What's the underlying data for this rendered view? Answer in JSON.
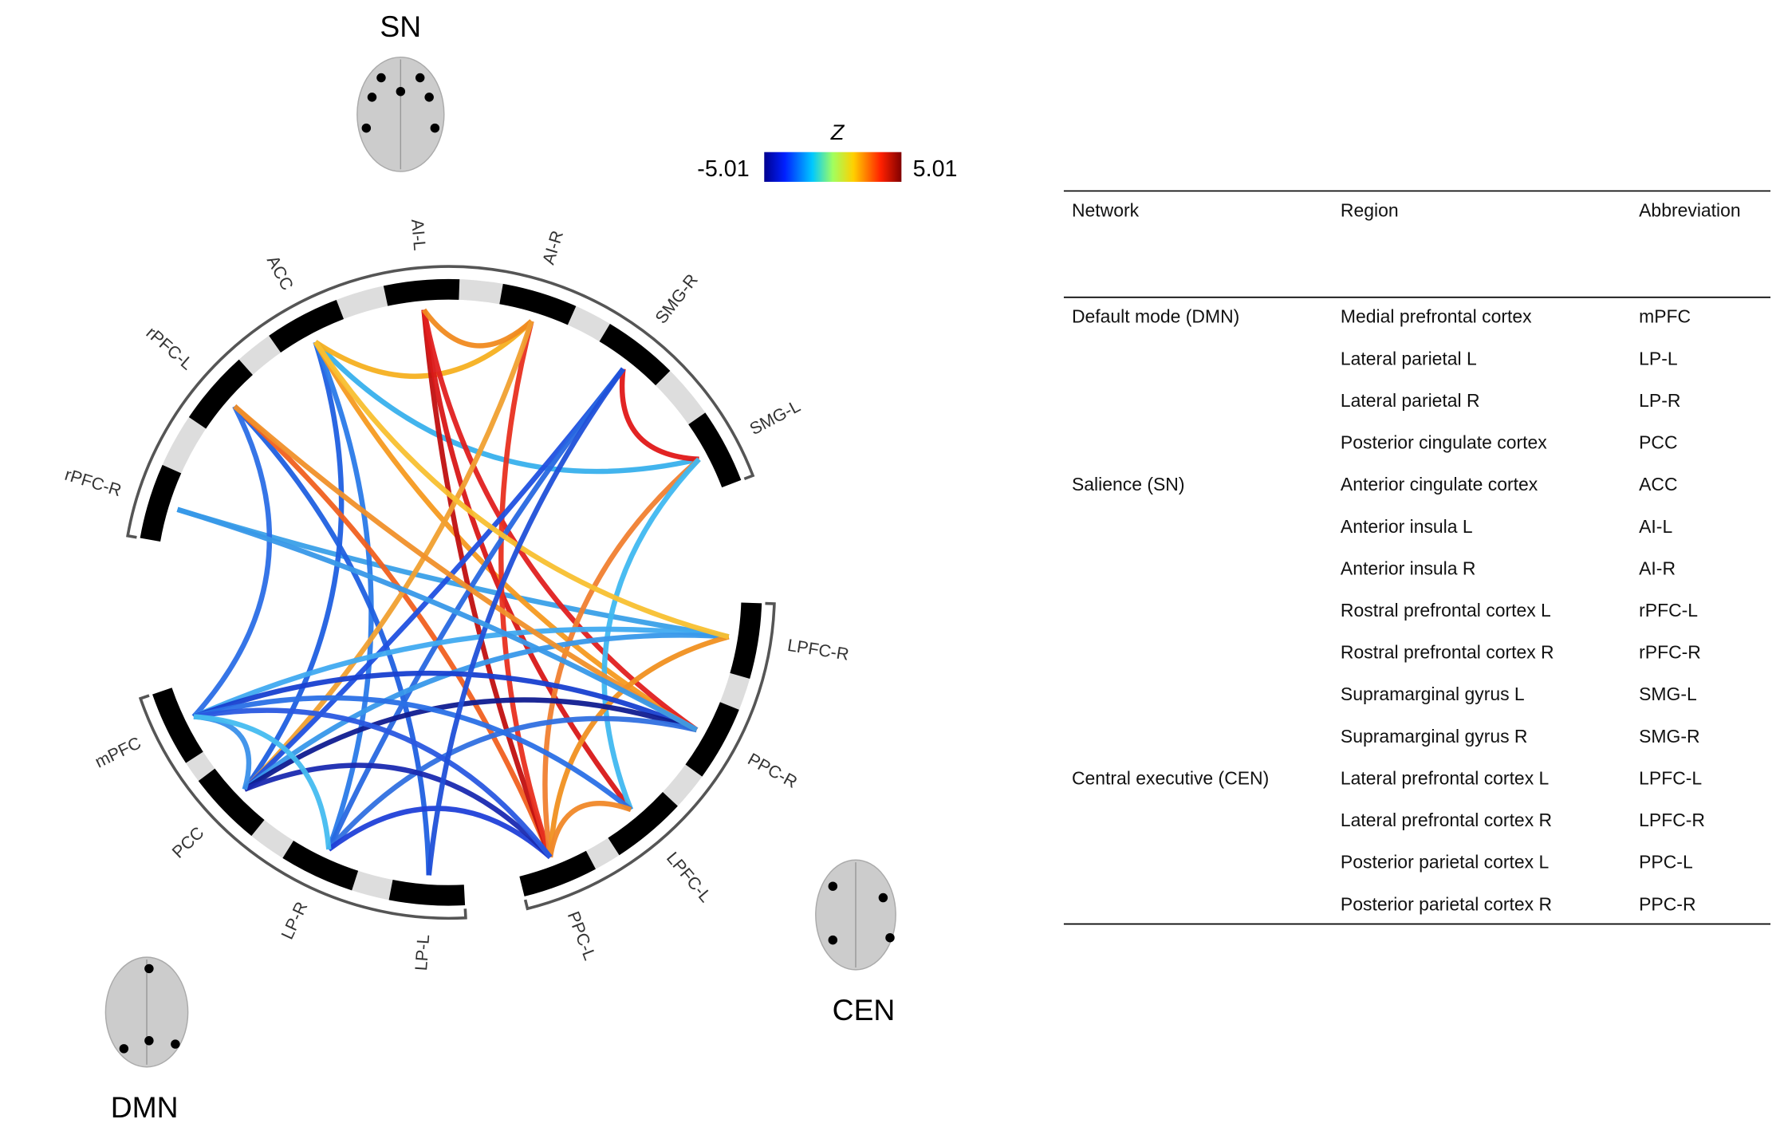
{
  "networks": {
    "sn": "SN",
    "dmn": "DMN",
    "cen": "CEN"
  },
  "colorbar": {
    "title": "Z",
    "min": -5.01,
    "max": 5.01
  },
  "nodes": [
    "rPFC-R",
    "rPFC-L",
    "ACC",
    "AI-L",
    "AI-R",
    "SMG-R",
    "SMG-L",
    "LPFC-R",
    "PPC-R",
    "LPFC-L",
    "PPC-L",
    "LP-L",
    "LP-R",
    "PCC",
    "mPFC"
  ],
  "table": {
    "header": [
      "Network",
      "Region",
      "Abbreviation"
    ],
    "groups": [
      {
        "network": "Default mode (DMN)",
        "rows": [
          [
            "Medial prefrontal cortex",
            "mPFC"
          ],
          [
            "Lateral parietal L",
            "LP-L"
          ],
          [
            "Lateral parietal R",
            "LP-R"
          ],
          [
            "Posterior cingulate cortex",
            "PCC"
          ]
        ]
      },
      {
        "network": "Salience (SN)",
        "rows": [
          [
            "Anterior cingulate cortex",
            "ACC"
          ],
          [
            "Anterior insula L",
            "AI-L"
          ],
          [
            "Anterior insula R",
            "AI-R"
          ],
          [
            "Rostral prefrontal cortex L",
            "rPFC-L"
          ],
          [
            "Rostral prefrontal cortex R",
            "rPFC-R"
          ],
          [
            "Supramarginal gyrus L",
            "SMG-L"
          ],
          [
            "Supramarginal gyrus R",
            "SMG-R"
          ]
        ]
      },
      {
        "network": "Central executive (CEN)",
        "rows": [
          [
            "Lateral prefrontal cortex L",
            "LPFC-L"
          ],
          [
            "Lateral prefrontal cortex R",
            "LPFC-R"
          ],
          [
            "Posterior parietal cortex L",
            "PPC-L"
          ],
          [
            "Posterior parietal cortex R",
            "PPC-R"
          ]
        ]
      }
    ]
  }
}
